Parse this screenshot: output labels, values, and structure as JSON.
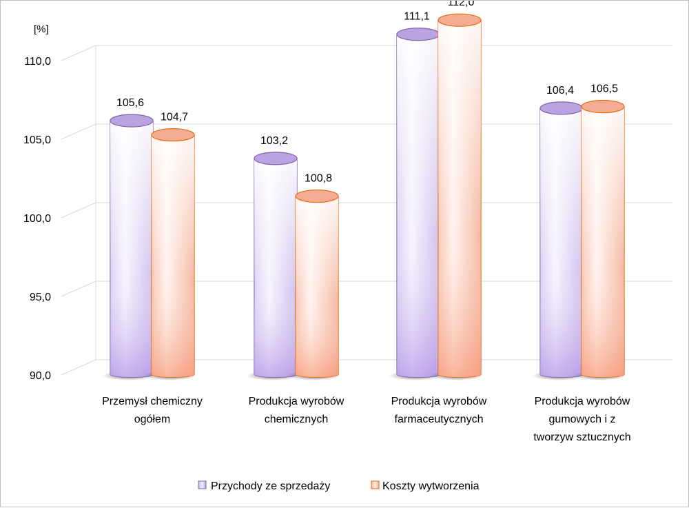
{
  "chart_data": {
    "type": "bar",
    "style": "3d-cylinder",
    "unit_label": "[%]",
    "categories": [
      [
        "Przemysł chemiczny",
        "ogółem"
      ],
      [
        "Produkcja wyrobów",
        "chemicznych"
      ],
      [
        "Produkcja wyrobów",
        "farmaceutycznych"
      ],
      [
        "Produkcja wyrobów",
        "gumowych i z",
        "tworzyw sztucznych"
      ]
    ],
    "series": [
      {
        "name": "Przychody ze sprzedaży",
        "values": [
          105.6,
          103.2,
          111.1,
          106.4
        ],
        "labels": [
          "105,6",
          "103,2",
          "111,1",
          "106,4"
        ],
        "color": "#b9a3e3"
      },
      {
        "name": "Koszty wytworzenia",
        "values": [
          104.7,
          100.8,
          112.0,
          106.5
        ],
        "labels": [
          "104,7",
          "100,8",
          "112,0",
          "106,5"
        ],
        "color": "#f4ac95"
      }
    ],
    "ylim": [
      90,
      110
    ],
    "yticks": [
      90,
      95,
      100,
      105,
      110
    ],
    "ytick_labels": [
      "90,0",
      "95,0",
      "100,0",
      "105,0",
      "110,0"
    ],
    "grid": true,
    "legend_position": "bottom"
  }
}
